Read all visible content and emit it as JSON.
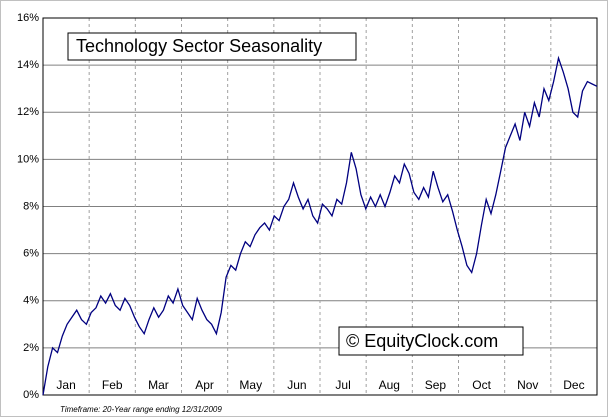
{
  "chart_data": {
    "type": "line",
    "title": "Technology Sector Seasonality",
    "watermark": "© EquityClock.com",
    "footnote": "Timeframe: 20-Year range ending 12/31/2009",
    "months": [
      "Jan",
      "Feb",
      "Mar",
      "Apr",
      "May",
      "Jun",
      "Jul",
      "Aug",
      "Sep",
      "Oct",
      "Nov",
      "Dec"
    ],
    "color": "#000080",
    "values": [
      0,
      1.2,
      2.0,
      1.8,
      2.5,
      3.0,
      3.3,
      3.6,
      3.2,
      3.0,
      3.5,
      3.7,
      4.2,
      3.9,
      4.3,
      3.8,
      3.6,
      4.1,
      3.8,
      3.3,
      2.9,
      2.6,
      3.2,
      3.7,
      3.3,
      3.6,
      4.2,
      3.9,
      4.5,
      3.8,
      3.5,
      3.2,
      4.1,
      3.6,
      3.2,
      3.0,
      2.6,
      3.5,
      5.0,
      5.5,
      5.3,
      6.0,
      6.5,
      6.3,
      6.8,
      7.1,
      7.3,
      7.0,
      7.6,
      7.4,
      8.0,
      8.3,
      9.0,
      8.4,
      7.9,
      8.3,
      7.6,
      7.3,
      8.1,
      7.9,
      7.6,
      8.3,
      8.1,
      9.0,
      10.3,
      9.6,
      8.5,
      7.9,
      8.4,
      8.0,
      8.5,
      8.0,
      8.6,
      9.3,
      9.0,
      9.8,
      9.4,
      8.6,
      8.3,
      8.8,
      8.4,
      9.5,
      8.8,
      8.2,
      8.5,
      7.8,
      7.0,
      6.3,
      5.5,
      5.2,
      6.0,
      7.2,
      8.3,
      7.7,
      8.5,
      9.5,
      10.5,
      11.0,
      11.5,
      10.8,
      12.0,
      11.4,
      12.4,
      11.8,
      13.0,
      12.5,
      13.3,
      14.3,
      13.7,
      13.0,
      12.0,
      11.8,
      12.9,
      13.3,
      13.2,
      13.1
    ],
    "ylim": [
      0,
      16
    ],
    "yticks": [
      {
        "value": 0,
        "label": "0%"
      },
      {
        "value": 2,
        "label": "2%"
      },
      {
        "value": 4,
        "label": "4%"
      },
      {
        "value": 6,
        "label": "6%"
      },
      {
        "value": 8,
        "label": "8%"
      },
      {
        "value": 10,
        "label": "10%"
      },
      {
        "value": 12,
        "label": "12%"
      },
      {
        "value": 14,
        "label": "14%"
      },
      {
        "value": 16,
        "label": "16%"
      }
    ],
    "grid": true
  }
}
